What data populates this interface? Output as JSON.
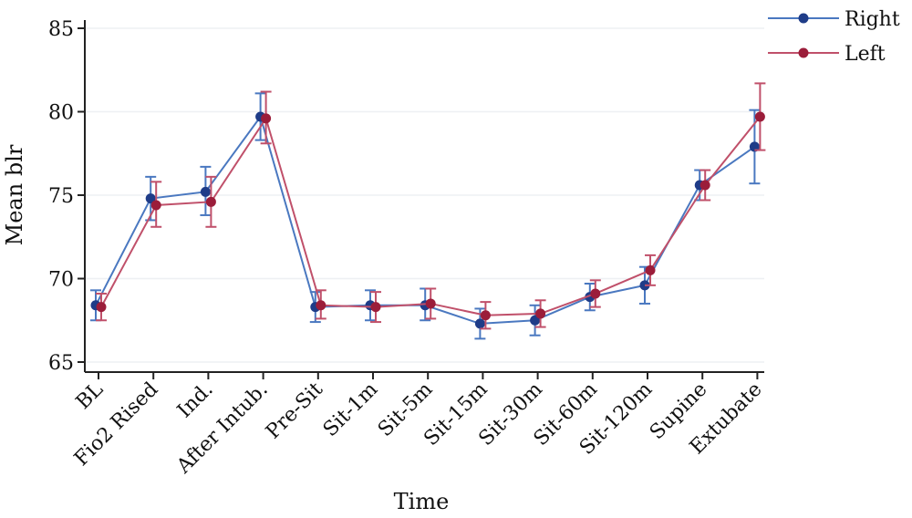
{
  "chart_data": {
    "type": "line",
    "xlabel": "Time",
    "ylabel": "Mean blr",
    "categories": [
      "BL",
      "Fio2 Rised",
      "Ind.",
      "After Intub.",
      "Pre-Sit",
      "Sit-1m",
      "Sit-5m",
      "Sit-15m",
      "Sit-30m",
      "Sit-60m",
      "Sit-120m",
      "Supine",
      "Extubate"
    ],
    "ylim": [
      64,
      86
    ],
    "yticks": [
      65,
      70,
      75,
      80,
      85
    ],
    "grid": true,
    "legend_position": "top-right",
    "series": [
      {
        "name": "Right",
        "color": "#4a78c0",
        "marker_color": "#1f3c88",
        "values": [
          68.4,
          74.8,
          75.2,
          79.7,
          68.3,
          68.4,
          68.4,
          67.3,
          67.5,
          68.9,
          69.6,
          75.6,
          77.9
        ],
        "lower": [
          67.5,
          73.5,
          73.8,
          78.3,
          67.4,
          67.5,
          67.5,
          66.4,
          66.6,
          68.1,
          68.5,
          74.7,
          75.7
        ],
        "upper": [
          69.3,
          76.1,
          76.7,
          81.1,
          69.2,
          69.3,
          69.4,
          68.2,
          68.4,
          69.7,
          70.7,
          76.5,
          80.1
        ]
      },
      {
        "name": "Left",
        "color": "#c0506a",
        "marker_color": "#9b1d3a",
        "values": [
          68.3,
          74.4,
          74.6,
          79.6,
          68.4,
          68.3,
          68.5,
          67.8,
          67.9,
          69.1,
          70.5,
          75.6,
          79.7
        ],
        "lower": [
          67.5,
          73.1,
          73.1,
          78.1,
          67.6,
          67.4,
          67.6,
          67.0,
          67.1,
          68.3,
          69.6,
          74.7,
          77.7
        ],
        "upper": [
          69.1,
          75.8,
          76.1,
          81.2,
          69.3,
          69.2,
          69.4,
          68.6,
          68.7,
          69.9,
          71.4,
          76.5,
          81.7
        ]
      }
    ]
  }
}
